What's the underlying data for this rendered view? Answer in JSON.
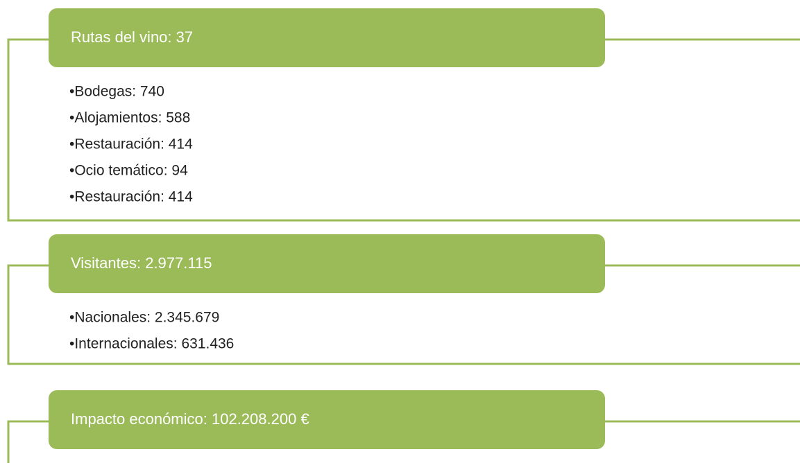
{
  "sections": [
    {
      "title": "Rutas del vino: 37",
      "items": [
        "•Bodegas: 740",
        "•Alojamientos: 588",
        "•Restauración: 414",
        "•Ocio temático: 94",
        "•Restauración: 414"
      ]
    },
    {
      "title": "Visitantes: 2.977.115",
      "items": [
        "•Nacionales: 2.345.679",
        "•Internacionales: 631.436"
      ]
    },
    {
      "title": "Impacto económico: 102.208.200 €",
      "items": []
    }
  ]
}
